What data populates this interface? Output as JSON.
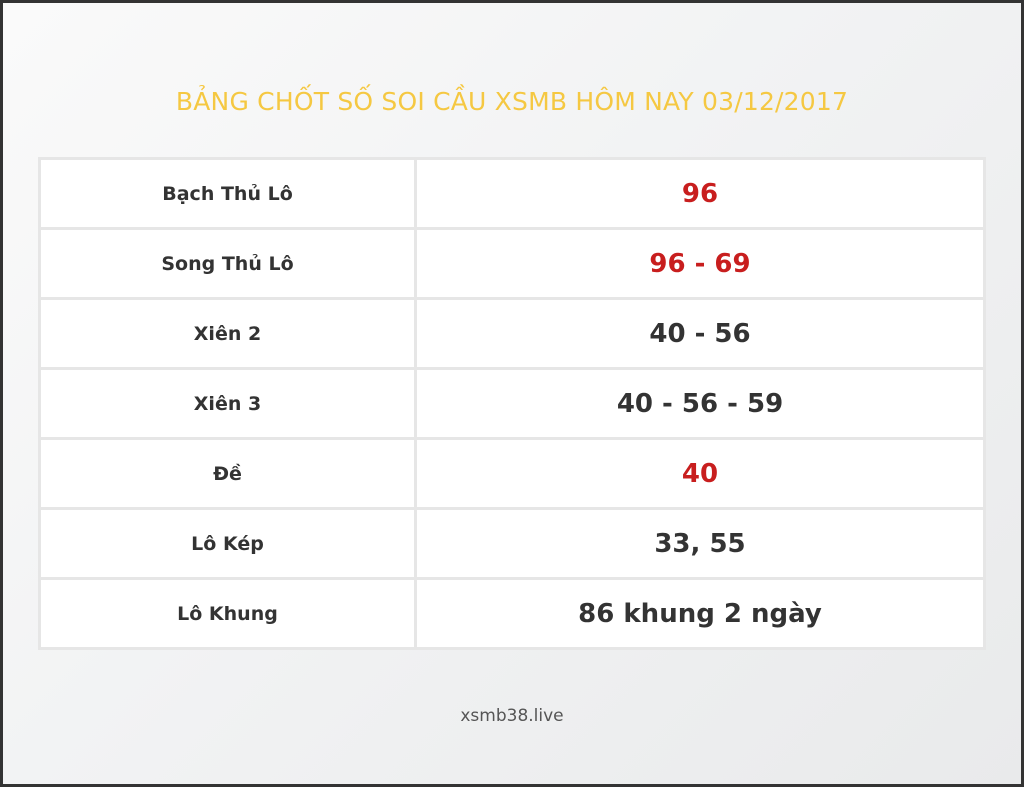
{
  "title": "BẢNG CHỐT SỐ SOI CẦU XSMB HÔM NAY 03/12/2017",
  "accent_color": "#f5c842",
  "highlight_color": "#c81e1e",
  "rows": [
    {
      "label": "Bạch Thủ Lô",
      "value": "96",
      "highlight": true
    },
    {
      "label": "Song Thủ Lô",
      "value": "96 - 69",
      "highlight": true
    },
    {
      "label": "Xiên 2",
      "value": "40 - 56",
      "highlight": false
    },
    {
      "label": "Xiên 3",
      "value": "40 - 56 - 59",
      "highlight": false
    },
    {
      "label": "Đề",
      "value": "40",
      "highlight": true
    },
    {
      "label": "Lô Kép",
      "value": "33, 55",
      "highlight": false
    },
    {
      "label": "Lô Khung",
      "value": "86 khung 2 ngày",
      "highlight": false
    }
  ],
  "footer": "xsmb38.live"
}
